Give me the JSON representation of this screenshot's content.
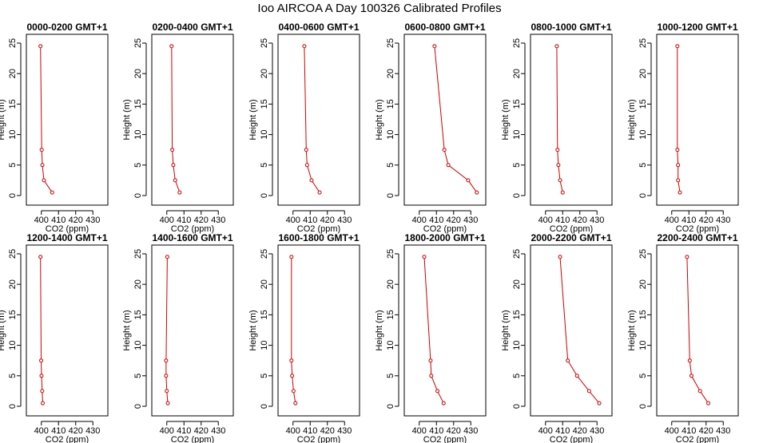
{
  "title": "Ioo AIRCOA A  Day 100326  Calibrated Profiles",
  "colors": {
    "series": "#cc0000",
    "axis": "#000000",
    "background": "#ffffff"
  },
  "chart_data": [
    {
      "type": "line",
      "title": "0000-0200 GMT+1",
      "xlabel": "CO2 (ppm)",
      "ylabel": "Height (m)",
      "xlim": [
        395,
        435
      ],
      "ylim": [
        0,
        25
      ],
      "xticks": [
        400,
        410,
        420,
        430
      ],
      "yticks": [
        0,
        5,
        10,
        15,
        20,
        25
      ],
      "points": [
        {
          "x": 399.5,
          "y": 24.5
        },
        {
          "x": 400.2,
          "y": 7.5
        },
        {
          "x": 400.6,
          "y": 5.0
        },
        {
          "x": 401.5,
          "y": 2.5
        },
        {
          "x": 406.3,
          "y": 0.5
        }
      ]
    },
    {
      "type": "line",
      "title": "0200-0400 GMT+1",
      "xlabel": "CO2 (ppm)",
      "ylabel": "Height (m)",
      "xlim": [
        395,
        435
      ],
      "ylim": [
        0,
        25
      ],
      "xticks": [
        400,
        410,
        420,
        430
      ],
      "yticks": [
        0,
        5,
        10,
        15,
        20,
        25
      ],
      "points": [
        {
          "x": 402.8,
          "y": 24.5
        },
        {
          "x": 403.2,
          "y": 7.5
        },
        {
          "x": 403.8,
          "y": 5.0
        },
        {
          "x": 404.9,
          "y": 2.5
        },
        {
          "x": 407.5,
          "y": 0.5
        }
      ]
    },
    {
      "type": "line",
      "title": "0400-0600 GMT+1",
      "xlabel": "CO2 (ppm)",
      "ylabel": "Height (m)",
      "xlim": [
        395,
        435
      ],
      "ylim": [
        0,
        25
      ],
      "xticks": [
        400,
        410,
        420,
        430
      ],
      "yticks": [
        0,
        5,
        10,
        15,
        20,
        25
      ],
      "points": [
        {
          "x": 406.6,
          "y": 24.5
        },
        {
          "x": 407.7,
          "y": 7.5
        },
        {
          "x": 408.2,
          "y": 5.0
        },
        {
          "x": 410.8,
          "y": 2.5
        },
        {
          "x": 415.5,
          "y": 0.5
        }
      ]
    },
    {
      "type": "line",
      "title": "0600-0800 GMT+1",
      "xlabel": "CO2 (ppm)",
      "ylabel": "Height (m)",
      "xlim": [
        395,
        435
      ],
      "ylim": [
        0,
        25
      ],
      "xticks": [
        400,
        410,
        420,
        430
      ],
      "yticks": [
        0,
        5,
        10,
        15,
        20,
        25
      ],
      "points": [
        {
          "x": 408.9,
          "y": 24.5
        },
        {
          "x": 414.6,
          "y": 7.5
        },
        {
          "x": 416.9,
          "y": 5.0
        },
        {
          "x": 428.5,
          "y": 2.5
        },
        {
          "x": 433.5,
          "y": 0.5
        }
      ]
    },
    {
      "type": "line",
      "title": "0800-1000 GMT+1",
      "xlabel": "CO2 (ppm)",
      "ylabel": "Height (m)",
      "xlim": [
        395,
        435
      ],
      "ylim": [
        0,
        25
      ],
      "xticks": [
        400,
        410,
        420,
        430
      ],
      "yticks": [
        0,
        5,
        10,
        15,
        20,
        25
      ],
      "points": [
        {
          "x": 406.6,
          "y": 24.5
        },
        {
          "x": 407.0,
          "y": 7.5
        },
        {
          "x": 407.5,
          "y": 5.0
        },
        {
          "x": 408.5,
          "y": 2.5
        },
        {
          "x": 410.0,
          "y": 0.5
        }
      ]
    },
    {
      "type": "line",
      "title": "1000-1200 GMT+1",
      "xlabel": "CO2 (ppm)",
      "ylabel": "Height (m)",
      "xlim": [
        395,
        435
      ],
      "ylim": [
        0,
        25
      ],
      "xticks": [
        400,
        410,
        420,
        430
      ],
      "yticks": [
        0,
        5,
        10,
        15,
        20,
        25
      ],
      "points": [
        {
          "x": 403.3,
          "y": 24.5
        },
        {
          "x": 403.3,
          "y": 7.5
        },
        {
          "x": 403.7,
          "y": 5.0
        },
        {
          "x": 403.7,
          "y": 2.5
        },
        {
          "x": 404.8,
          "y": 0.5
        }
      ]
    },
    {
      "type": "line",
      "title": "1200-1400 GMT+1",
      "xlabel": "CO2 (ppm)",
      "ylabel": "Height (m)",
      "xlim": [
        395,
        435
      ],
      "ylim": [
        0,
        25
      ],
      "xticks": [
        400,
        410,
        420,
        430
      ],
      "yticks": [
        0,
        5,
        10,
        15,
        20,
        25
      ],
      "points": [
        {
          "x": 399.5,
          "y": 24.5
        },
        {
          "x": 399.9,
          "y": 7.5
        },
        {
          "x": 400.1,
          "y": 5.0
        },
        {
          "x": 400.5,
          "y": 2.5
        },
        {
          "x": 400.8,
          "y": 0.5
        }
      ]
    },
    {
      "type": "line",
      "title": "1400-1600 GMT+1",
      "xlabel": "CO2 (ppm)",
      "ylabel": "Height (m)",
      "xlim": [
        395,
        435
      ],
      "ylim": [
        0,
        25
      ],
      "xticks": [
        400,
        410,
        420,
        430
      ],
      "yticks": [
        0,
        5,
        10,
        15,
        20,
        25
      ],
      "points": [
        {
          "x": 400.3,
          "y": 24.5
        },
        {
          "x": 399.6,
          "y": 7.5
        },
        {
          "x": 399.6,
          "y": 5.0
        },
        {
          "x": 400.0,
          "y": 2.5
        },
        {
          "x": 400.6,
          "y": 0.5
        }
      ]
    },
    {
      "type": "line",
      "title": "1600-1800 GMT+1",
      "xlabel": "CO2 (ppm)",
      "ylabel": "Height (m)",
      "xlim": [
        395,
        435
      ],
      "ylim": [
        0,
        25
      ],
      "xticks": [
        400,
        410,
        420,
        430
      ],
      "yticks": [
        0,
        5,
        10,
        15,
        20,
        25
      ],
      "points": [
        {
          "x": 399.1,
          "y": 24.5
        },
        {
          "x": 399.1,
          "y": 7.5
        },
        {
          "x": 399.5,
          "y": 5.0
        },
        {
          "x": 400.3,
          "y": 2.5
        },
        {
          "x": 401.4,
          "y": 0.5
        }
      ]
    },
    {
      "type": "line",
      "title": "1800-2000 GMT+1",
      "xlabel": "CO2 (ppm)",
      "ylabel": "Height (m)",
      "xlim": [
        395,
        435
      ],
      "ylim": [
        0,
        25
      ],
      "xticks": [
        400,
        410,
        420,
        430
      ],
      "yticks": [
        0,
        5,
        10,
        15,
        20,
        25
      ],
      "points": [
        {
          "x": 402.9,
          "y": 24.5
        },
        {
          "x": 406.6,
          "y": 7.5
        },
        {
          "x": 407.0,
          "y": 5.0
        },
        {
          "x": 410.6,
          "y": 2.5
        },
        {
          "x": 414.2,
          "y": 0.5
        }
      ]
    },
    {
      "type": "line",
      "title": "2000-2200 GMT+1",
      "xlabel": "CO2 (ppm)",
      "ylabel": "Height (m)",
      "xlim": [
        395,
        435
      ],
      "ylim": [
        0,
        25
      ],
      "xticks": [
        400,
        410,
        420,
        430
      ],
      "yticks": [
        0,
        5,
        10,
        15,
        20,
        25
      ],
      "points": [
        {
          "x": 408.5,
          "y": 24.5
        },
        {
          "x": 413.0,
          "y": 7.5
        },
        {
          "x": 418.4,
          "y": 5.0
        },
        {
          "x": 425.4,
          "y": 2.5
        },
        {
          "x": 431.3,
          "y": 0.5
        }
      ]
    },
    {
      "type": "line",
      "title": "2200-2400 GMT+1",
      "xlabel": "CO2 (ppm)",
      "ylabel": "Height (m)",
      "xlim": [
        395,
        435
      ],
      "ylim": [
        0,
        25
      ],
      "xticks": [
        400,
        410,
        420,
        430
      ],
      "yticks": [
        0,
        5,
        10,
        15,
        20,
        25
      ],
      "points": [
        {
          "x": 408.9,
          "y": 24.5
        },
        {
          "x": 410.5,
          "y": 7.5
        },
        {
          "x": 411.5,
          "y": 5.0
        },
        {
          "x": 416.5,
          "y": 2.5
        },
        {
          "x": 421.3,
          "y": 0.5
        }
      ]
    }
  ]
}
